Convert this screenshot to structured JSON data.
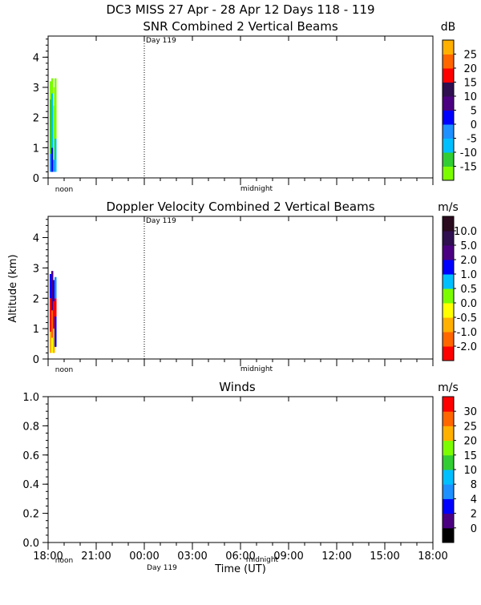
{
  "header": {
    "title_line": "DC3 MISS  27 Apr - 28 Apr 12 Days 118 - 119"
  },
  "chart_data": [
    {
      "type": "heatmap",
      "title": "SNR Combined 2 Vertical Beams",
      "ylim": [
        0,
        4.7
      ],
      "yticks": [
        "0",
        "1",
        "2",
        "3",
        "4"
      ],
      "day_marker": "Day 119",
      "time_labels": [
        "noon",
        "midnight"
      ],
      "colorbar": {
        "unit": "dB",
        "labels": [
          "-15",
          "-10",
          "-5",
          "0",
          "5",
          "10",
          "15",
          "20",
          "25"
        ],
        "colors": [
          "#7cfc00",
          "#32cd32",
          "#00bfff",
          "#1e90ff",
          "#0000ff",
          "#4b0082",
          "#2f0f4f",
          "#ff0000",
          "#ff6600",
          "#ffb000"
        ]
      },
      "profiles": [
        {
          "x_offset": 0,
          "segments": [
            {
              "from": 0.2,
              "to": 0.8,
              "color": "#1e90ff"
            },
            {
              "from": 0.8,
              "to": 2.6,
              "color": "#32cd32"
            },
            {
              "from": 2.6,
              "to": 3.2,
              "color": "#7cfc00"
            }
          ]
        },
        {
          "x_offset": 2,
          "segments": [
            {
              "from": 0.2,
              "to": 1.0,
              "color": "#0000ff"
            },
            {
              "from": 1.0,
              "to": 2.8,
              "color": "#00bfff"
            },
            {
              "from": 2.8,
              "to": 3.3,
              "color": "#7cfc00"
            }
          ]
        },
        {
          "x_offset": 4,
          "segments": [
            {
              "from": 0.2,
              "to": 0.6,
              "color": "#1e90ff"
            },
            {
              "from": 0.6,
              "to": 2.4,
              "color": "#7cfc00"
            },
            {
              "from": 2.4,
              "to": 3.0,
              "color": "#adff2f"
            }
          ]
        },
        {
          "x_offset": 6,
          "segments": [
            {
              "from": 0.2,
              "to": 1.3,
              "color": "#00bfff"
            },
            {
              "from": 1.3,
              "to": 3.3,
              "color": "#7cfc00"
            }
          ]
        }
      ]
    },
    {
      "type": "heatmap",
      "title": "Doppler Velocity Combined 2 Vertical Beams",
      "ylabel": "Altitude (km)",
      "ylim": [
        0,
        4.7
      ],
      "yticks": [
        "0",
        "1",
        "2",
        "3",
        "4"
      ],
      "day_marker": "Day 119",
      "time_labels": [
        "noon",
        "midnight"
      ],
      "colorbar": {
        "unit": "m/s",
        "labels": [
          "-2.0",
          "-1.0",
          "-0.5",
          "0.0",
          "0.5",
          "1.0",
          "2.0",
          "5.0",
          "10.0"
        ],
        "colors": [
          "#ff0000",
          "#ff6600",
          "#ffb000",
          "#ffff00",
          "#7cfc00",
          "#00bfff",
          "#0000ff",
          "#4b0082",
          "#2f0f4f",
          "#2a0a1e"
        ]
      },
      "profiles": [
        {
          "x_offset": 0,
          "segments": [
            {
              "from": 0.2,
              "to": 0.9,
              "color": "#ffb000"
            },
            {
              "from": 0.9,
              "to": 2.0,
              "color": "#ff0000"
            },
            {
              "from": 2.0,
              "to": 2.8,
              "color": "#0000ff"
            }
          ]
        },
        {
          "x_offset": 2,
          "segments": [
            {
              "from": 0.2,
              "to": 0.7,
              "color": "#ffff00"
            },
            {
              "from": 0.7,
              "to": 1.6,
              "color": "#ff6600"
            },
            {
              "from": 1.6,
              "to": 2.9,
              "color": "#4b0082"
            }
          ]
        },
        {
          "x_offset": 4,
          "segments": [
            {
              "from": 0.2,
              "to": 1.0,
              "color": "#ffb000"
            },
            {
              "from": 1.0,
              "to": 1.9,
              "color": "#ff0000"
            },
            {
              "from": 1.9,
              "to": 2.6,
              "color": "#0000ff"
            }
          ]
        },
        {
          "x_offset": 6,
          "segments": [
            {
              "from": 0.4,
              "to": 1.4,
              "color": "#0000ff"
            },
            {
              "from": 1.4,
              "to": 2.0,
              "color": "#ff0000"
            },
            {
              "from": 2.0,
              "to": 2.7,
              "color": "#1e90ff"
            }
          ]
        }
      ]
    },
    {
      "type": "scatter",
      "title": "Winds",
      "xlabel": "Time (UT)",
      "ylim": [
        0,
        1.0
      ],
      "yticks": [
        "0.0",
        "0.2",
        "0.4",
        "0.6",
        "0.8",
        "1.0"
      ],
      "xticks": [
        "18:00",
        "21:00",
        "00:00",
        "03:00",
        "06:00",
        "09:00",
        "12:00",
        "15:00",
        "18:00"
      ],
      "day_marker": "Day 119",
      "time_labels": [
        "noon",
        "midnight"
      ],
      "colorbar": {
        "unit": "m/s",
        "labels": [
          "0",
          "2",
          "4",
          "8",
          "10",
          "15",
          "20",
          "25",
          "30"
        ],
        "colors": [
          "#000000",
          "#4b0082",
          "#0000ff",
          "#1e90ff",
          "#00bfff",
          "#32cd32",
          "#7cfc00",
          "#ffb000",
          "#ff6600",
          "#ff0000"
        ]
      },
      "values": []
    }
  ]
}
